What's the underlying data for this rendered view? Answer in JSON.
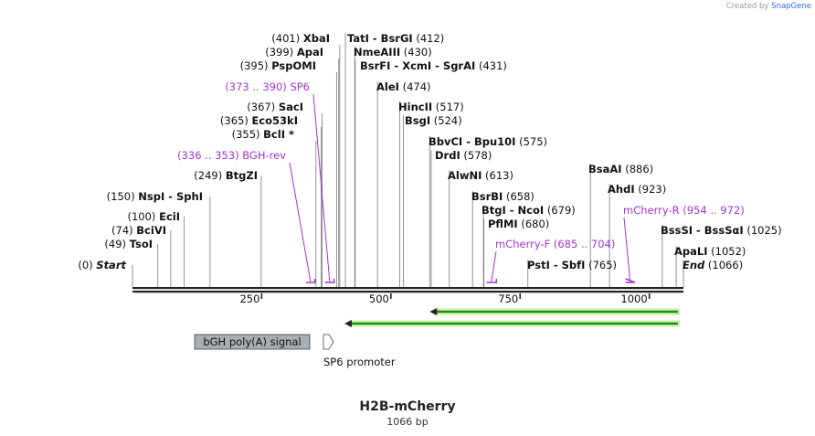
{
  "credit": {
    "prefix": "Created by",
    "brand": "SnapGene"
  },
  "title": "H2B-mCherry",
  "subtitle": "1066 bp",
  "colors": {
    "primer": "#a335cf",
    "feature_arrow": "#1d8a1d",
    "feature_box": "#a9aeb4",
    "backbone": "#222222"
  },
  "ruler": {
    "ticks": [
      250,
      500,
      750,
      1000
    ],
    "length": 1066
  },
  "sites": [
    {
      "name": "Start",
      "pos": "(0)",
      "bp": 0,
      "italic": true
    },
    {
      "name": "TsoI",
      "pos": "(49)",
      "bp": 49
    },
    {
      "name": "BciVI",
      "pos": "(74)",
      "bp": 74
    },
    {
      "name": "EciI",
      "pos": "(100)",
      "bp": 100
    },
    {
      "name": "NspI  -  SphI",
      "pos": "(150)",
      "bp": 150
    },
    {
      "name": "BtgZI",
      "pos": "(249)",
      "bp": 249
    },
    {
      "name": "BclI *",
      "pos": "(355)",
      "bp": 355
    },
    {
      "name": "Eco53kI",
      "pos": "(365)",
      "bp": 365
    },
    {
      "name": "SacI",
      "pos": "(367)",
      "bp": 367
    },
    {
      "name": "PspOMI",
      "pos": "(395)",
      "bp": 395
    },
    {
      "name": "ApaI",
      "pos": "(399)",
      "bp": 399
    },
    {
      "name": "XbaI",
      "pos": "(401)",
      "bp": 401
    },
    {
      "name": "TatI  -  BsrGI",
      "pos": "(412)",
      "bp": 412
    },
    {
      "name": "NmeAIII",
      "pos": "(430)",
      "bp": 430
    },
    {
      "name": "BsrFI  -  XcmI  -  SgrAI",
      "pos": "(431)",
      "bp": 431
    },
    {
      "name": "AleI",
      "pos": "(474)",
      "bp": 474
    },
    {
      "name": "HincII",
      "pos": "(517)",
      "bp": 517
    },
    {
      "name": "BsgI",
      "pos": "(524)",
      "bp": 524
    },
    {
      "name": "BbvCI  -  Bpu10I",
      "pos": "(575)",
      "bp": 575
    },
    {
      "name": "DrdI",
      "pos": "(578)",
      "bp": 578
    },
    {
      "name": "AlwNI",
      "pos": "(613)",
      "bp": 613
    },
    {
      "name": "BsrBI",
      "pos": "(658)",
      "bp": 658
    },
    {
      "name": "BtgI  -  NcoI",
      "pos": "(679)",
      "bp": 679
    },
    {
      "name": "PflMI",
      "pos": "(680)",
      "bp": 680
    },
    {
      "name": "PstI  -  SbfI",
      "pos": "(765)",
      "bp": 765
    },
    {
      "name": "BsaAI",
      "pos": "(886)",
      "bp": 886
    },
    {
      "name": "AhdI",
      "pos": "(923)",
      "bp": 923
    },
    {
      "name": "BssSI  -  BssSαI",
      "pos": "(1025)",
      "bp": 1025
    },
    {
      "name": "ApaLI",
      "pos": "(1052)",
      "bp": 1052
    },
    {
      "name": "End",
      "pos": "(1066)",
      "bp": 1066,
      "italic": true
    }
  ],
  "primers": [
    {
      "name": "SP6",
      "range": "(373 .. 390)",
      "start": 373,
      "end": 390
    },
    {
      "name": "BGH-rev",
      "range": "(336 .. 353)",
      "start": 336,
      "end": 353
    },
    {
      "name": "mCherry-R",
      "range": "(954 .. 972)",
      "start": 954,
      "end": 972
    },
    {
      "name": "mCherry-F",
      "range": "(685 .. 704)",
      "start": 685,
      "end": 704
    }
  ],
  "features": [
    {
      "name": "bGH poly(A) signal",
      "type": "box"
    },
    {
      "name": "SP6 promoter",
      "type": "promoter"
    }
  ],
  "arrows": [
    {
      "name": "feature-arrow-1",
      "start": 575,
      "end": 1066
    },
    {
      "name": "feature-arrow-2",
      "start": 410,
      "end": 1066
    }
  ]
}
